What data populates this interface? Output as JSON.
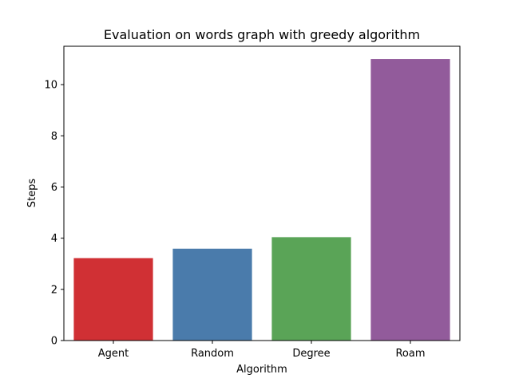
{
  "chart_data": {
    "type": "bar",
    "title": "Evaluation on words graph with greedy algorithm",
    "xlabel": "Algorithm",
    "ylabel": "Steps",
    "categories": [
      "Agent",
      "Random",
      "Degree",
      "Roam"
    ],
    "values": [
      3.22,
      3.59,
      4.04,
      11.0
    ],
    "colors": [
      "#d03034",
      "#4a7bab",
      "#5aa457",
      "#925b9b"
    ],
    "ylim": [
      0,
      11.5
    ],
    "yticks": [
      0,
      2,
      4,
      6,
      8,
      10
    ],
    "grid": false,
    "legend": "none"
  }
}
